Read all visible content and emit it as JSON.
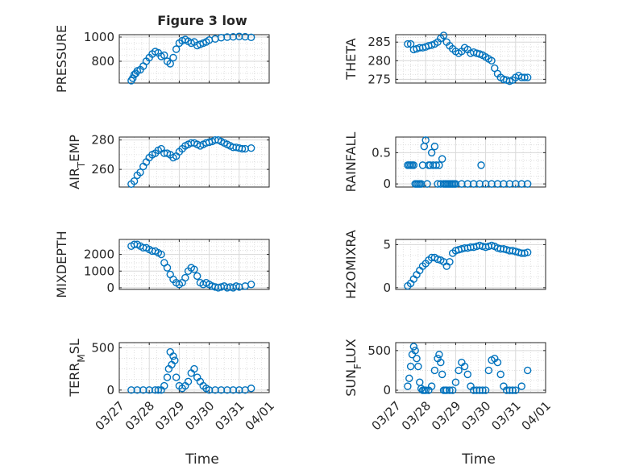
{
  "figure": {
    "title": "Figure 3 low",
    "xlabel": "Time",
    "x_tick_labels": [
      "03/27",
      "03/28",
      "03/29",
      "03/30",
      "03/31",
      "04/01"
    ]
  },
  "colors": {
    "marker": "#0072BD",
    "grid": "#d9d9d9",
    "axis": "#262626",
    "background": "#ffffff"
  },
  "chart_data": [
    {
      "type": "scatter",
      "ylabel": "PRESSURE",
      "ylabel_sub": "",
      "ylabel_tail": "",
      "xlim": [
        27,
        32
      ],
      "ylim": [
        620,
        1020
      ],
      "yticks": [
        800,
        1000
      ],
      "grid": "major+minor",
      "x": [
        27.4,
        27.45,
        27.5,
        27.55,
        27.6,
        27.7,
        27.8,
        27.9,
        28.0,
        28.1,
        28.2,
        28.3,
        28.4,
        28.5,
        28.6,
        28.7,
        28.8,
        28.9,
        29.0,
        29.1,
        29.2,
        29.3,
        29.4,
        29.5,
        29.6,
        29.7,
        29.8,
        29.9,
        30.0,
        30.2,
        30.4,
        30.6,
        30.8,
        31.0,
        31.2,
        31.4
      ],
      "y": [
        640,
        660,
        690,
        700,
        720,
        730,
        760,
        800,
        830,
        860,
        880,
        870,
        840,
        850,
        800,
        780,
        830,
        900,
        950,
        970,
        980,
        965,
        950,
        960,
        930,
        940,
        950,
        960,
        975,
        985,
        995,
        1000,
        1002,
        1005,
        1003,
        998
      ]
    },
    {
      "type": "scatter",
      "ylabel": "THETA",
      "ylabel_sub": "",
      "ylabel_tail": "",
      "xlim": [
        27,
        32
      ],
      "ylim": [
        274,
        287
      ],
      "yticks": [
        275,
        280,
        285
      ],
      "grid": "major+minor",
      "x": [
        27.4,
        27.5,
        27.6,
        27.7,
        27.8,
        27.9,
        28.0,
        28.1,
        28.2,
        28.3,
        28.4,
        28.5,
        28.6,
        28.7,
        28.8,
        28.9,
        29.0,
        29.1,
        29.2,
        29.3,
        29.4,
        29.5,
        29.6,
        29.7,
        29.8,
        29.9,
        30.0,
        30.1,
        30.2,
        30.3,
        30.4,
        30.5,
        30.6,
        30.7,
        30.8,
        30.9,
        31.0,
        31.1,
        31.2,
        31.3,
        31.4
      ],
      "y": [
        284.5,
        284.5,
        283,
        283.2,
        283.5,
        283.5,
        283.7,
        284,
        284.2,
        284.5,
        285,
        286,
        286.8,
        285,
        284,
        283.2,
        282.5,
        282,
        282.5,
        283.5,
        283,
        282,
        282.3,
        282,
        281.8,
        281.5,
        281,
        280.5,
        280,
        278,
        276.5,
        275.5,
        275,
        274.8,
        274.5,
        274.8,
        275.5,
        276,
        275.5,
        275.5,
        275.5
      ]
    },
    {
      "type": "scatter",
      "ylabel": "AIR",
      "ylabel_sub": "T",
      "ylabel_tail": "EMP",
      "xlim": [
        27,
        32
      ],
      "ylim": [
        248,
        282
      ],
      "yticks": [
        260,
        280
      ],
      "grid": "major+minor",
      "x": [
        27.4,
        27.5,
        27.6,
        27.7,
        27.8,
        27.9,
        28.0,
        28.1,
        28.2,
        28.3,
        28.4,
        28.5,
        28.6,
        28.7,
        28.8,
        28.9,
        29.0,
        29.1,
        29.2,
        29.3,
        29.4,
        29.5,
        29.6,
        29.7,
        29.8,
        29.9,
        30.0,
        30.1,
        30.2,
        30.3,
        30.4,
        30.5,
        30.6,
        30.7,
        30.8,
        30.9,
        31.0,
        31.1,
        31.2,
        31.4
      ],
      "y": [
        250,
        252,
        256,
        258,
        262,
        265,
        268,
        270,
        271,
        273,
        274,
        271,
        271,
        270,
        268,
        269,
        272,
        274,
        276,
        277,
        278,
        278,
        277,
        276,
        277,
        278,
        278.5,
        279,
        280,
        280,
        279,
        278,
        277,
        276,
        275,
        275,
        274.5,
        274,
        274,
        274.5
      ]
    },
    {
      "type": "scatter",
      "ylabel": "RAINFALL",
      "ylabel_sub": "",
      "ylabel_tail": "",
      "xlim": [
        27,
        32
      ],
      "ylim": [
        -0.05,
        0.75
      ],
      "yticks": [
        0,
        0.5
      ],
      "grid": "major+minor",
      "x": [
        27.4,
        27.45,
        27.5,
        27.55,
        27.6,
        27.65,
        27.7,
        27.75,
        27.8,
        27.85,
        27.9,
        27.95,
        28.0,
        28.05,
        28.1,
        28.15,
        28.2,
        28.25,
        28.3,
        28.35,
        28.4,
        28.45,
        28.5,
        28.55,
        28.6,
        28.65,
        28.7,
        28.75,
        28.8,
        28.85,
        28.9,
        28.95,
        29.0,
        29.2,
        29.4,
        29.6,
        29.8,
        29.85,
        30.0,
        30.2,
        30.4,
        30.6,
        30.8,
        31.0,
        31.2,
        31.4
      ],
      "y": [
        0.3,
        0.3,
        0.3,
        0.3,
        0.3,
        0,
        0,
        0,
        0,
        0,
        0.3,
        0.6,
        0.7,
        0,
        0.3,
        0.3,
        0.5,
        0.3,
        0.6,
        0.3,
        0,
        0.3,
        0,
        0.4,
        0,
        0,
        0,
        0,
        0,
        0,
        0,
        0,
        0,
        0,
        0,
        0,
        0,
        0.3,
        0,
        0,
        0,
        0,
        0,
        0,
        0,
        0
      ]
    },
    {
      "type": "scatter",
      "ylabel": "MIXDEPTH",
      "ylabel_sub": "",
      "ylabel_tail": "",
      "xlim": [
        27,
        32
      ],
      "ylim": [
        -100,
        2900
      ],
      "yticks": [
        0,
        1000,
        2000
      ],
      "grid": "major+minor",
      "x": [
        27.4,
        27.5,
        27.6,
        27.7,
        27.8,
        27.9,
        28.0,
        28.1,
        28.2,
        28.3,
        28.4,
        28.5,
        28.6,
        28.7,
        28.8,
        28.9,
        29.0,
        29.1,
        29.2,
        29.3,
        29.4,
        29.5,
        29.6,
        29.7,
        29.8,
        29.9,
        30.0,
        30.1,
        30.2,
        30.3,
        30.4,
        30.5,
        30.6,
        30.7,
        30.8,
        30.9,
        31.0,
        31.2,
        31.4
      ],
      "y": [
        2500,
        2600,
        2600,
        2500,
        2400,
        2400,
        2300,
        2200,
        2200,
        2100,
        2000,
        1500,
        1200,
        800,
        500,
        300,
        200,
        300,
        600,
        1000,
        1200,
        1100,
        700,
        300,
        200,
        300,
        200,
        100,
        50,
        0,
        50,
        100,
        0,
        50,
        0,
        100,
        50,
        100,
        200
      ]
    },
    {
      "type": "scatter",
      "ylabel": "H2OMIXRA",
      "ylabel_sub": "",
      "ylabel_tail": "",
      "xlim": [
        27,
        32
      ],
      "ylim": [
        -0.2,
        5.6
      ],
      "yticks": [
        0,
        5
      ],
      "grid": "major+minor",
      "x": [
        27.4,
        27.5,
        27.6,
        27.7,
        27.8,
        27.9,
        28.0,
        28.1,
        28.2,
        28.3,
        28.4,
        28.5,
        28.6,
        28.7,
        28.8,
        28.9,
        29.0,
        29.1,
        29.2,
        29.3,
        29.4,
        29.5,
        29.6,
        29.7,
        29.8,
        29.9,
        30.0,
        30.1,
        30.2,
        30.3,
        30.4,
        30.5,
        30.6,
        30.7,
        30.8,
        30.9,
        31.0,
        31.1,
        31.2,
        31.3,
        31.4
      ],
      "y": [
        0.2,
        0.5,
        1,
        1.5,
        2,
        2.5,
        2.8,
        3.2,
        3.5,
        3.5,
        3.3,
        3.2,
        3.0,
        2.5,
        3,
        4,
        4.3,
        4.4,
        4.5,
        4.6,
        4.6,
        4.7,
        4.7,
        4.8,
        4.9,
        4.8,
        4.7,
        4.8,
        4.9,
        4.8,
        4.6,
        4.5,
        4.5,
        4.4,
        4.3,
        4.3,
        4.2,
        4.1,
        4.0,
        4.0,
        4.1
      ]
    },
    {
      "type": "scatter",
      "ylabel": "TERR",
      "ylabel_sub": "M",
      "ylabel_tail": "SL",
      "xlim": [
        27,
        32
      ],
      "ylim": [
        -30,
        560
      ],
      "yticks": [
        0,
        500
      ],
      "grid": "major+minor",
      "x": [
        27.4,
        27.6,
        27.8,
        28.0,
        28.2,
        28.3,
        28.4,
        28.5,
        28.6,
        28.65,
        28.7,
        28.75,
        28.8,
        28.85,
        28.9,
        29.0,
        29.1,
        29.2,
        29.3,
        29.4,
        29.5,
        29.6,
        29.7,
        29.8,
        29.9,
        30.0,
        30.2,
        30.4,
        30.6,
        30.8,
        31.0,
        31.2,
        31.4
      ],
      "y": [
        0,
        0,
        0,
        0,
        0,
        0,
        0,
        50,
        150,
        250,
        450,
        300,
        400,
        350,
        150,
        50,
        20,
        50,
        100,
        200,
        250,
        150,
        100,
        50,
        20,
        0,
        0,
        0,
        0,
        0,
        0,
        0,
        20
      ]
    },
    {
      "type": "scatter",
      "ylabel": "SUN",
      "ylabel_sub": "F",
      "ylabel_tail": "LUX",
      "xlim": [
        27,
        32
      ],
      "ylim": [
        -30,
        600
      ],
      "yticks": [
        0,
        500
      ],
      "grid": "major+minor",
      "x": [
        27.4,
        27.45,
        27.5,
        27.55,
        27.6,
        27.65,
        27.7,
        27.75,
        27.8,
        27.85,
        27.9,
        27.95,
        28.0,
        28.1,
        28.2,
        28.3,
        28.4,
        28.45,
        28.5,
        28.55,
        28.6,
        28.65,
        28.7,
        28.8,
        28.9,
        29.0,
        29.1,
        29.2,
        29.3,
        29.4,
        29.5,
        29.6,
        29.7,
        29.8,
        29.9,
        30.0,
        30.1,
        30.2,
        30.3,
        30.4,
        30.5,
        30.6,
        30.7,
        30.8,
        30.9,
        31.0,
        31.2,
        31.4
      ],
      "y": [
        50,
        150,
        300,
        450,
        550,
        500,
        400,
        300,
        100,
        20,
        0,
        0,
        0,
        0,
        50,
        250,
        400,
        450,
        350,
        200,
        0,
        0,
        0,
        0,
        0,
        100,
        250,
        350,
        300,
        200,
        50,
        0,
        0,
        0,
        0,
        0,
        250,
        380,
        400,
        350,
        200,
        50,
        0,
        0,
        0,
        0,
        50,
        250
      ]
    }
  ]
}
